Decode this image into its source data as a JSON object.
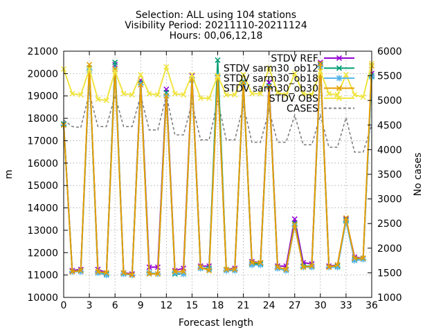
{
  "chart_data": {
    "type": "line",
    "title": {
      "line1": "Selection: ALL using   104 stations",
      "line2": "Visibility   Period: 20211110-20211124",
      "line3": "Hours: 00,06,12,18"
    },
    "xlabel": "Forecast length",
    "ylabel": "m",
    "y2label": "No cases",
    "xlim": [
      0,
      36
    ],
    "ylim": [
      10000,
      21000
    ],
    "y2lim": [
      1000,
      6000
    ],
    "x_ticks": [
      0,
      3,
      6,
      9,
      12,
      15,
      18,
      21,
      24,
      27,
      30,
      33,
      36
    ],
    "y_ticks": [
      10000,
      11000,
      12000,
      13000,
      14000,
      15000,
      16000,
      17000,
      18000,
      19000,
      20000,
      21000
    ],
    "y2_ticks": [
      1000,
      1500,
      2000,
      2500,
      3000,
      3500,
      4000,
      4500,
      5000,
      5500,
      6000
    ],
    "legend_position": "top-right",
    "x": [
      0,
      1,
      2,
      3,
      4,
      5,
      6,
      7,
      8,
      9,
      10,
      11,
      12,
      13,
      14,
      15,
      16,
      17,
      18,
      19,
      20,
      21,
      22,
      23,
      24,
      25,
      26,
      27,
      28,
      29,
      30,
      31,
      32,
      33,
      34,
      35,
      36
    ],
    "series": [
      {
        "name": "STDV REF",
        "color": "#9400d3",
        "marker": "x",
        "axis": "y",
        "values": [
          17750,
          11200,
          11250,
          20200,
          11250,
          11100,
          20400,
          11100,
          11050,
          19700,
          11350,
          11350,
          19300,
          11200,
          11300,
          19900,
          11400,
          11400,
          19900,
          11250,
          11300,
          19500,
          11600,
          11550,
          19600,
          11400,
          11400,
          13500,
          11550,
          11500,
          20500,
          11400,
          11450,
          13500,
          11800,
          11750,
          20000
        ]
      },
      {
        "name": "STDV sarm30_ob12",
        "color": "#009e73",
        "marker": "x",
        "axis": "y",
        "values": [
          17750,
          11150,
          11200,
          20250,
          11100,
          11050,
          20500,
          11050,
          11000,
          19600,
          11100,
          11050,
          19150,
          11050,
          11050,
          19750,
          11300,
          11300,
          20600,
          11250,
          11250,
          19650,
          11500,
          11500,
          19450,
          11300,
          11250,
          13300,
          11400,
          11400,
          20400,
          11350,
          11400,
          13450,
          11700,
          11750,
          19900
        ]
      },
      {
        "name": "STDV sarm30_ob18",
        "color": "#56b4e9",
        "marker": "*",
        "axis": "y",
        "values": [
          17700,
          11150,
          11150,
          20150,
          11100,
          11000,
          20200,
          11050,
          11000,
          19500,
          11100,
          11050,
          19000,
          11100,
          11050,
          19700,
          11300,
          11250,
          19900,
          11200,
          11200,
          19500,
          11450,
          11450,
          19400,
          11300,
          11200,
          13200,
          11350,
          11350,
          20300,
          11350,
          11350,
          13400,
          11650,
          11700,
          19850
        ]
      },
      {
        "name": "STDV sarm30_ob30",
        "color": "#e69f00",
        "marker": "x",
        "axis": "y",
        "values": [
          17700,
          11150,
          11200,
          20400,
          11150,
          11100,
          20200,
          11100,
          11000,
          19500,
          11050,
          11050,
          19000,
          11150,
          11150,
          19750,
          11350,
          11200,
          19850,
          11250,
          11250,
          19600,
          11550,
          11550,
          19400,
          11350,
          11250,
          13250,
          11350,
          11400,
          20450,
          11350,
          11450,
          13550,
          11750,
          11750,
          20350
        ]
      },
      {
        "name": "STDV OBS",
        "color": "#f0e442",
        "marker": "x",
        "axis": "y",
        "values": [
          20200,
          19100,
          19050,
          20200,
          18850,
          18800,
          20100,
          19100,
          19050,
          19950,
          19100,
          19050,
          20300,
          19100,
          19050,
          19950,
          18900,
          18900,
          19900,
          19050,
          19050,
          19950,
          19100,
          19100,
          20250,
          19150,
          19050,
          20000,
          19100,
          19050,
          20100,
          19100,
          19050,
          19950,
          19050,
          18950,
          20450
        ]
      },
      {
        "name": "CASES",
        "color": "#808080",
        "marker": "",
        "dashed": true,
        "axis": "y2",
        "values": [
          4600,
          4470,
          4450,
          5150,
          4470,
          4470,
          5100,
          4470,
          4470,
          5100,
          4400,
          4400,
          5100,
          4300,
          4300,
          4950,
          4200,
          4200,
          5000,
          4200,
          4200,
          4900,
          4150,
          4150,
          4800,
          4150,
          4150,
          4700,
          4100,
          4100,
          4700,
          4050,
          4050,
          4650,
          3950,
          3950,
          4500
        ]
      }
    ]
  }
}
